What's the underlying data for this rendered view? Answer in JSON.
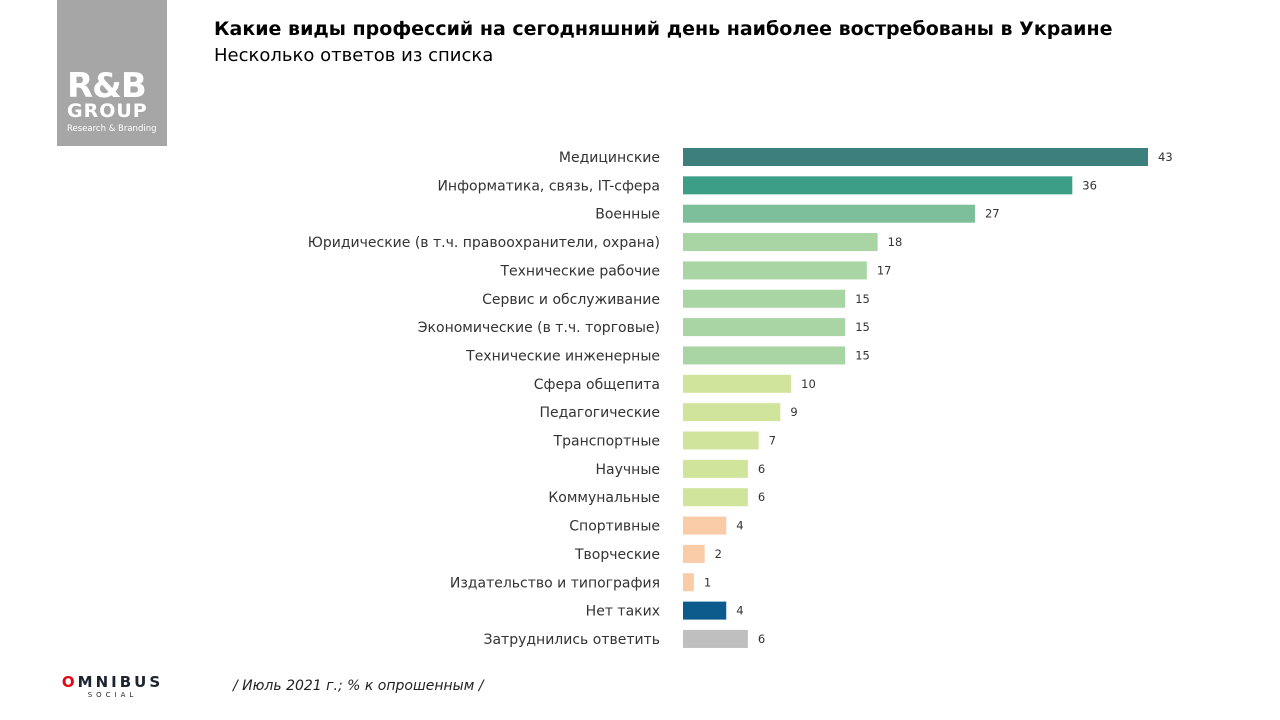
{
  "logo": {
    "mark": "R&B",
    "group": "GROUP",
    "sub": "Research & Branding"
  },
  "header": {
    "title": "Какие виды профессий на сегодняшний день наиболее востребованы в Украине",
    "subtitle": "Несколько ответов из списка"
  },
  "footer": {
    "brand_o": "O",
    "brand_rest": "MNIBUS",
    "brand_sub": "SOCIAL",
    "note": "/ Июль 2021 г.; % к опрошенным /"
  },
  "chart_data": {
    "type": "bar",
    "orientation": "horizontal",
    "title": "Какие виды профессий на сегодняшний день наиболее востребованы в Украине",
    "subtitle": "Несколько ответов из списка",
    "unit": "% к опрошенным",
    "xlim": [
      0,
      43
    ],
    "grid": false,
    "legend": "none",
    "categories": [
      "Медицинские",
      "Информатика, связь, IT-сфера",
      "Военные",
      "Юридические  (в т.ч. правоохранители, охрана)",
      "Технические  рабочие",
      "Сервис и обслуживание",
      "Экономические  (в т.ч. торговые)",
      "Технические  инженерные",
      "Сфера общепита",
      "Педагогические",
      "Транспортные",
      "Научные",
      "Коммунальные",
      "Спортивные",
      "Творческие",
      "Издательство и типография",
      "Нет таких",
      "Затруднились ответить"
    ],
    "values": [
      43,
      36,
      27,
      18,
      17,
      15,
      15,
      15,
      10,
      9,
      7,
      6,
      6,
      4,
      2,
      1,
      4,
      6
    ],
    "colors": [
      "#3c7f7d",
      "#3d9e86",
      "#7dbf9a",
      "#a8d5a3",
      "#a8d5a3",
      "#a8d5a3",
      "#a8d5a3",
      "#a8d5a3",
      "#d1e49b",
      "#d1e49b",
      "#d1e49b",
      "#d1e49b",
      "#d1e49b",
      "#f9cba7",
      "#f9cba7",
      "#f9cba7",
      "#0d5a8c",
      "#bfbfbf"
    ]
  }
}
